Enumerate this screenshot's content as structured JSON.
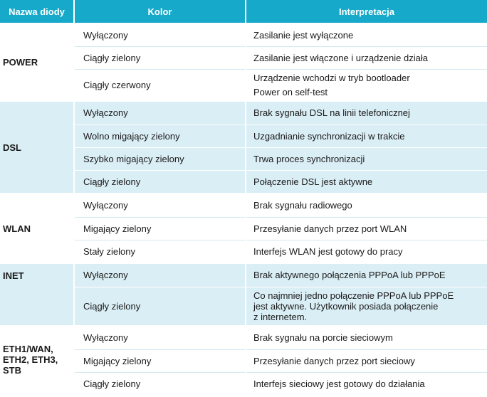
{
  "header": {
    "col_name": "Nazwa diody",
    "col_color": "Kolor",
    "col_interpretation": "Interpretacja"
  },
  "groups": [
    {
      "name": "POWER",
      "rows": [
        {
          "color": "Wyłączony",
          "interp": [
            "Zasilanie jest wyłączone"
          ]
        },
        {
          "color": "Ciągły zielony",
          "interp": [
            "Zasilanie jest włączone i urządzenie działa"
          ]
        },
        {
          "color": "Ciągły czerwony",
          "interp": [
            "Urządzenie wchodzi w tryb bootloader",
            "Power on self-test"
          ]
        }
      ]
    },
    {
      "name": "DSL",
      "rows": [
        {
          "color": "Wyłączony",
          "interp": [
            "Brak sygnału DSL na linii telefonicznej"
          ]
        },
        {
          "color": "Wolno migający zielony",
          "interp": [
            "Uzgadnianie synchronizacji w trakcie"
          ]
        },
        {
          "color": "Szybko migający zielony",
          "interp": [
            "Trwa proces synchronizacji"
          ]
        },
        {
          "color": "Ciągły zielony",
          "interp": [
            "Połączenie DSL jest aktywne"
          ]
        }
      ]
    },
    {
      "name": "WLAN",
      "rows": [
        {
          "color": "Wyłączony",
          "interp": [
            "Brak sygnału radiowego"
          ]
        },
        {
          "color": "Migający zielony",
          "interp": [
            "Przesyłanie danych przez port WLAN"
          ]
        },
        {
          "color": "Stały zielony",
          "interp": [
            "Interfejs WLAN jest gotowy do pracy"
          ]
        }
      ]
    },
    {
      "name": "INET",
      "rows": [
        {
          "color": "Wyłączony",
          "interp": [
            "Brak aktywnego połączenia PPPoA lub PPPoE"
          ]
        },
        {
          "color": "Ciągły zielony",
          "interp": [
            "Co najmniej jedno połączenie PPPoA lub PPPoE",
            "jest aktywne. Użytkownik posiada połączenie",
            "z internetem."
          ]
        }
      ]
    },
    {
      "name": "ETH1/WAN, ETH2, ETH3, STB",
      "name_lines": [
        "ETH1/WAN,",
        "ETH2, ETH3,",
        "STB"
      ],
      "rows": [
        {
          "color": "Wyłączony",
          "interp": [
            "Brak sygnału na porcie sieciowym"
          ]
        },
        {
          "color": "Migający zielony",
          "interp": [
            "Przesyłanie danych przez port sieciowy"
          ]
        },
        {
          "color": "Ciągły zielony",
          "interp": [
            "Interfejs sieciowy jest gotowy do działania"
          ]
        }
      ]
    }
  ],
  "colors": {
    "header_bg": "#17a9c9",
    "alt_row_bg": "#daeef5"
  }
}
